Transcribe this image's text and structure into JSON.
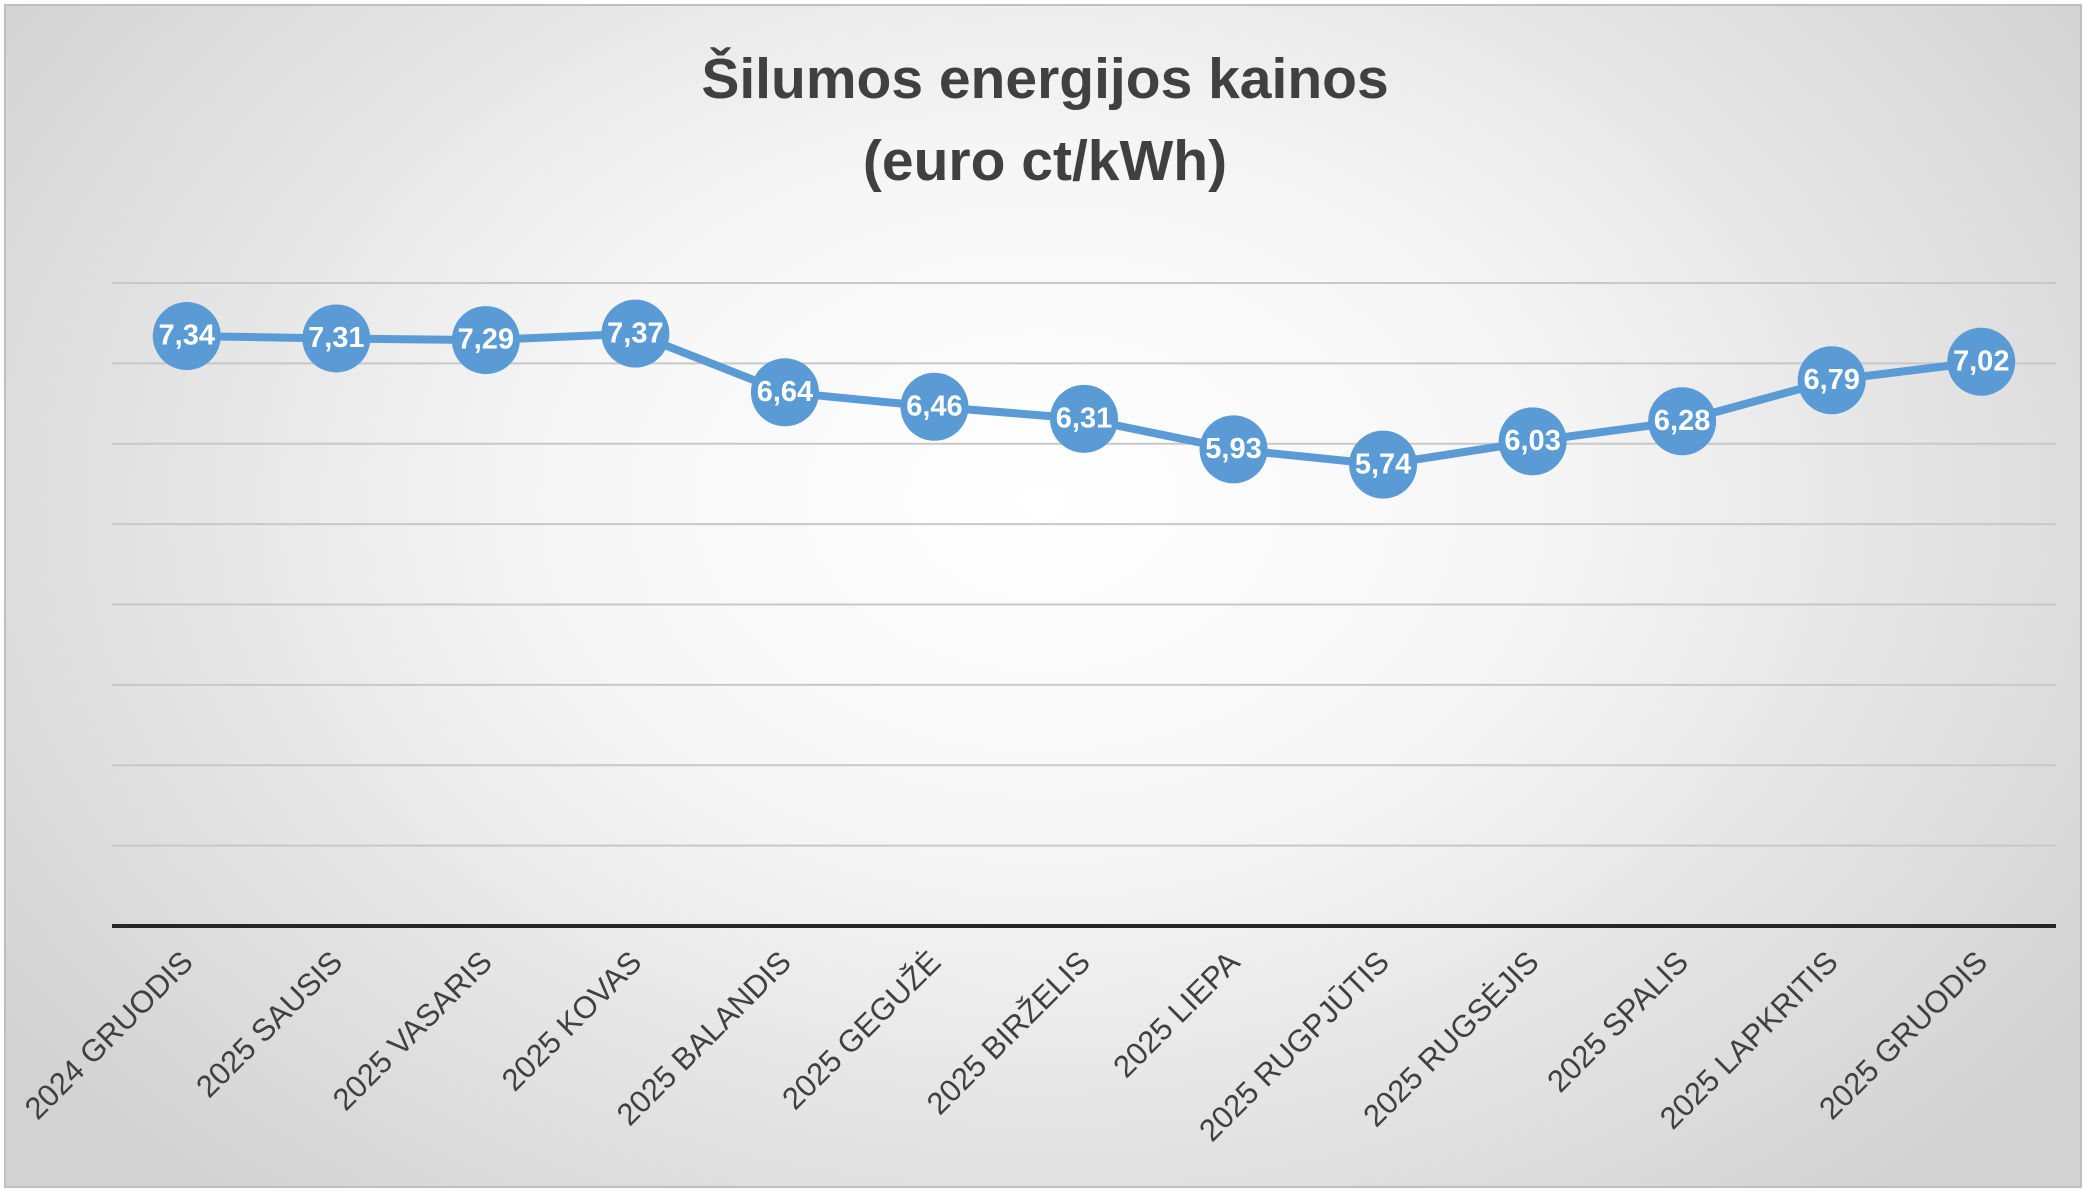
{
  "chart_data": {
    "type": "line",
    "title": "Šilumos energijos kainos",
    "subtitle": "(euro ct/kWh)",
    "xlabel": "",
    "ylabel": "",
    "categories": [
      "2024 GRUODIS",
      "2025 SAUSIS",
      "2025 VASARIS",
      "2025 KOVAS",
      "2025 BALANDIS",
      "2025 GEGUŽĖ",
      "2025 BIRŽELIS",
      "2025 LIEPA",
      "2025 RUGPJŪTIS",
      "2025 RUGSĖJIS",
      "2025 SPALIS",
      "2025 LAPKRITIS",
      "2025 GRUODIS"
    ],
    "series": [
      {
        "values": [
          7.34,
          7.31,
          7.29,
          7.37,
          6.64,
          6.46,
          6.31,
          5.93,
          5.74,
          6.03,
          6.28,
          6.79,
          7.02
        ],
        "labels": [
          "7,34",
          "7,31",
          "7,29",
          "7,37",
          "6,64",
          "6,46",
          "6,31",
          "5,93",
          "5,74",
          "6,03",
          "6,28",
          "6,79",
          "7,02"
        ]
      }
    ],
    "ylim": [
      0,
      8
    ],
    "y_gridlines": [
      1,
      2,
      3,
      4,
      5,
      6,
      7,
      8
    ],
    "y_axis_labels_visible": false,
    "grid": true,
    "legend": "none",
    "colors": {
      "line": "#5b9bd5",
      "marker": "#5b9bd5",
      "data_label": "#ffffff",
      "title": "#404040",
      "gridline": "#c8c8c8",
      "axis": "#262626"
    }
  }
}
